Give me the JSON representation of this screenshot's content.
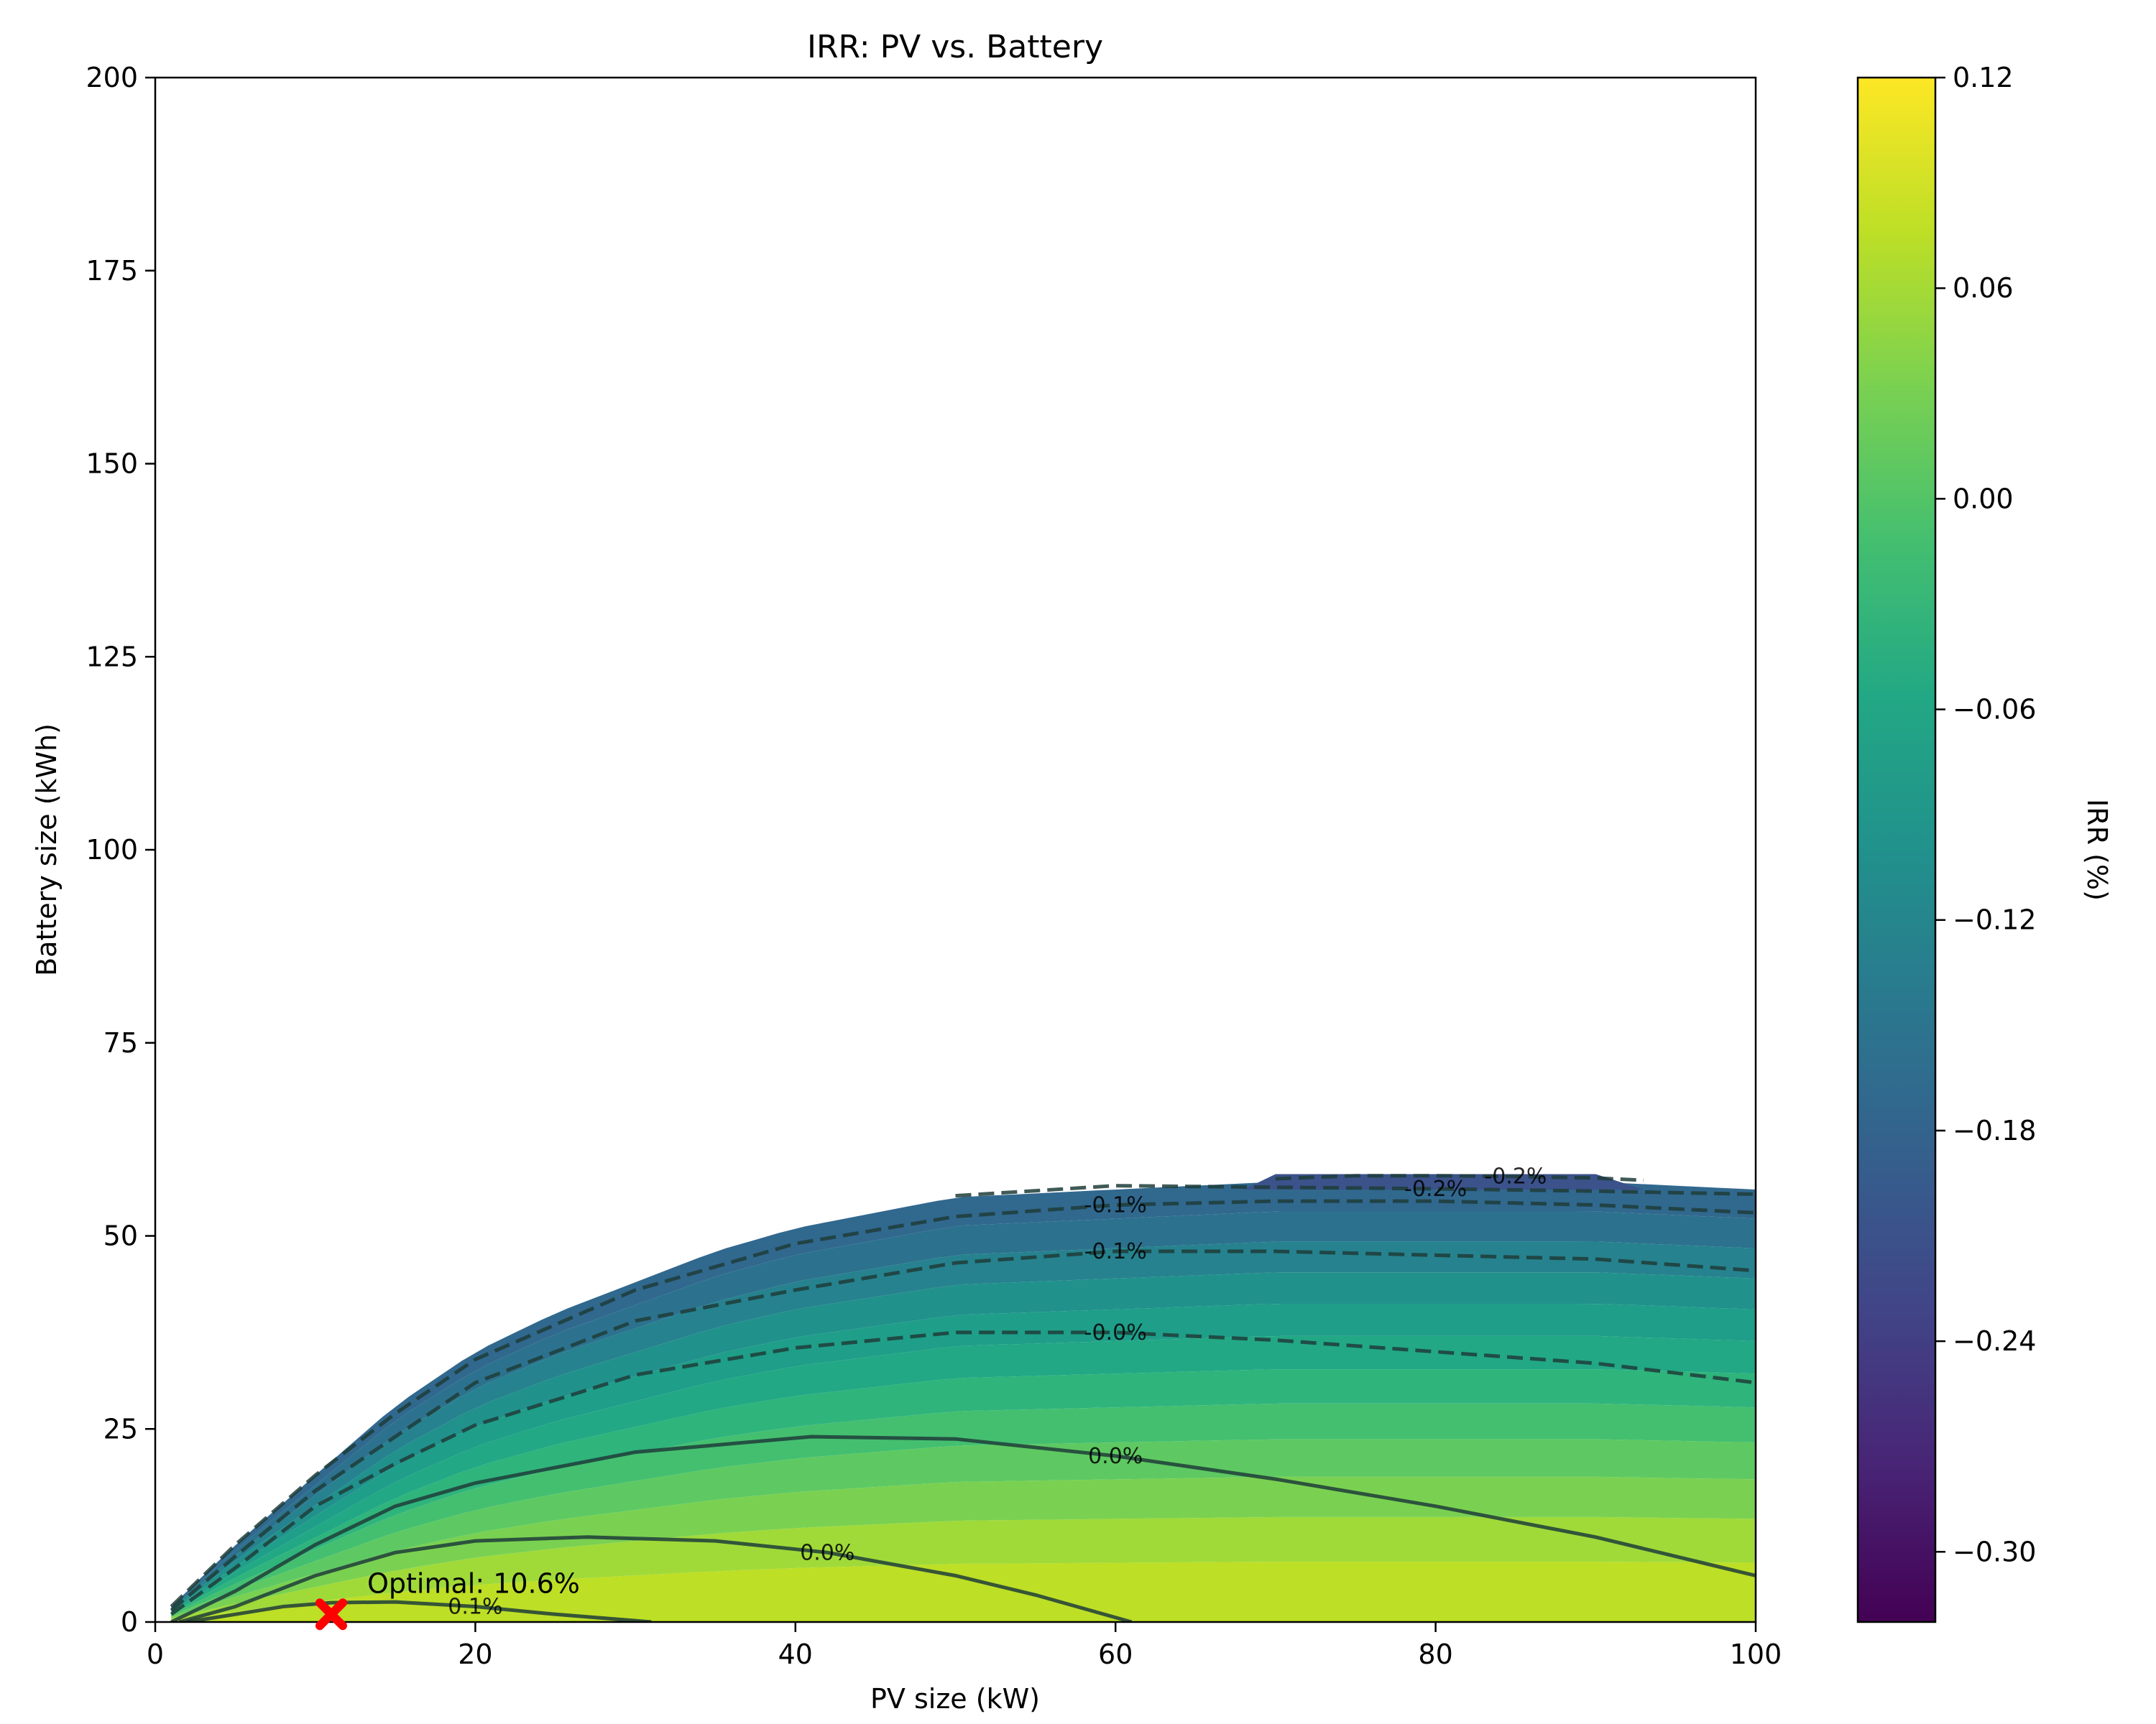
{
  "chart_data": {
    "type": "contour",
    "title": "IRR: PV vs. Battery",
    "xlabel": "PV size (kW)",
    "ylabel": "Battery size (kWh)",
    "xlim": [
      0,
      100
    ],
    "ylim": [
      0,
      200
    ],
    "x_ticks": [
      "0",
      "20",
      "40",
      "60",
      "80",
      "100"
    ],
    "y_ticks": [
      "0",
      "25",
      "50",
      "75",
      "100",
      "125",
      "150",
      "175",
      "200"
    ],
    "colorbar": {
      "label": "IRR (%)",
      "range": [
        -0.32,
        0.12
      ],
      "ticks": [
        "0.12",
        "0.06",
        "0.00",
        "−0.06",
        "−0.12",
        "−0.18",
        "−0.24",
        "−0.30"
      ],
      "colormap": "viridis"
    },
    "feasible_region": {
      "boundary_x": [
        1,
        5,
        10,
        15,
        20,
        25,
        30,
        35,
        40,
        45,
        50,
        60,
        70,
        80,
        90,
        100
      ],
      "boundary_y": [
        2,
        10,
        19,
        28,
        35,
        40,
        44,
        48,
        51,
        53,
        55,
        56,
        57,
        57,
        57,
        56
      ]
    },
    "contour_lines": [
      {
        "label": "0.1%",
        "style": "solid",
        "x": [
          2,
          5,
          8,
          11,
          15,
          20,
          25,
          31
        ],
        "y": [
          0,
          1,
          2,
          2.5,
          2.6,
          2,
          1,
          0
        ]
      },
      {
        "label": "0.0%",
        "style": "solid",
        "x": [
          1.5,
          5,
          10,
          15,
          20,
          27,
          35,
          42,
          50,
          55,
          61
        ],
        "y": [
          0,
          2,
          6,
          9,
          10.5,
          11,
          10.5,
          9,
          6,
          3.5,
          0
        ]
      },
      {
        "label": "0.0%",
        "style": "solid",
        "x": [
          1,
          5,
          10,
          15,
          20,
          30,
          41,
          50,
          60,
          70,
          80,
          90,
          100
        ],
        "y": [
          0,
          4,
          10,
          15,
          18,
          22,
          24,
          23.7,
          21.5,
          18.5,
          15,
          11,
          6
        ]
      },
      {
        "label": "-0.0%",
        "style": "dashed",
        "x": [
          1,
          5,
          10,
          15,
          20,
          30,
          40,
          50,
          60,
          70,
          80,
          90,
          100
        ],
        "y": [
          1,
          7,
          15,
          20.5,
          25.5,
          32,
          35.5,
          37.5,
          37.5,
          36.5,
          35,
          33.5,
          31
        ]
      },
      {
        "label": "-0.1%",
        "style": "dashed",
        "x": [
          1,
          5,
          10,
          15,
          20,
          30,
          40,
          50,
          60,
          70,
          80,
          90,
          100
        ],
        "y": [
          1.5,
          8.5,
          17,
          24,
          31,
          39,
          43,
          46.5,
          48,
          48,
          47.5,
          47,
          45.5
        ]
      },
      {
        "label": "-0.1%",
        "style": "dashed",
        "x": [
          1,
          5,
          10,
          15,
          20,
          30,
          40,
          50,
          60,
          70,
          80,
          90,
          100
        ],
        "y": [
          2,
          10,
          19,
          27,
          34,
          43,
          49,
          52.5,
          54,
          54.5,
          54.5,
          54,
          53
        ]
      },
      {
        "label": "-0.2%",
        "style": "dashed",
        "x": [
          50,
          60,
          70,
          80,
          90,
          100
        ],
        "y": [
          55.2,
          56.5,
          56.3,
          56.1,
          55.8,
          55.4
        ]
      },
      {
        "label": "-0.2%",
        "style": "dashed",
        "x": [
          70,
          75,
          80,
          85,
          90,
          93
        ],
        "y": [
          57.4,
          57.8,
          57.8,
          57.7,
          57.5,
          57.2
        ]
      }
    ],
    "optimal_point": {
      "x": 11,
      "y": 1,
      "label": "Optimal: 10.6%"
    }
  }
}
